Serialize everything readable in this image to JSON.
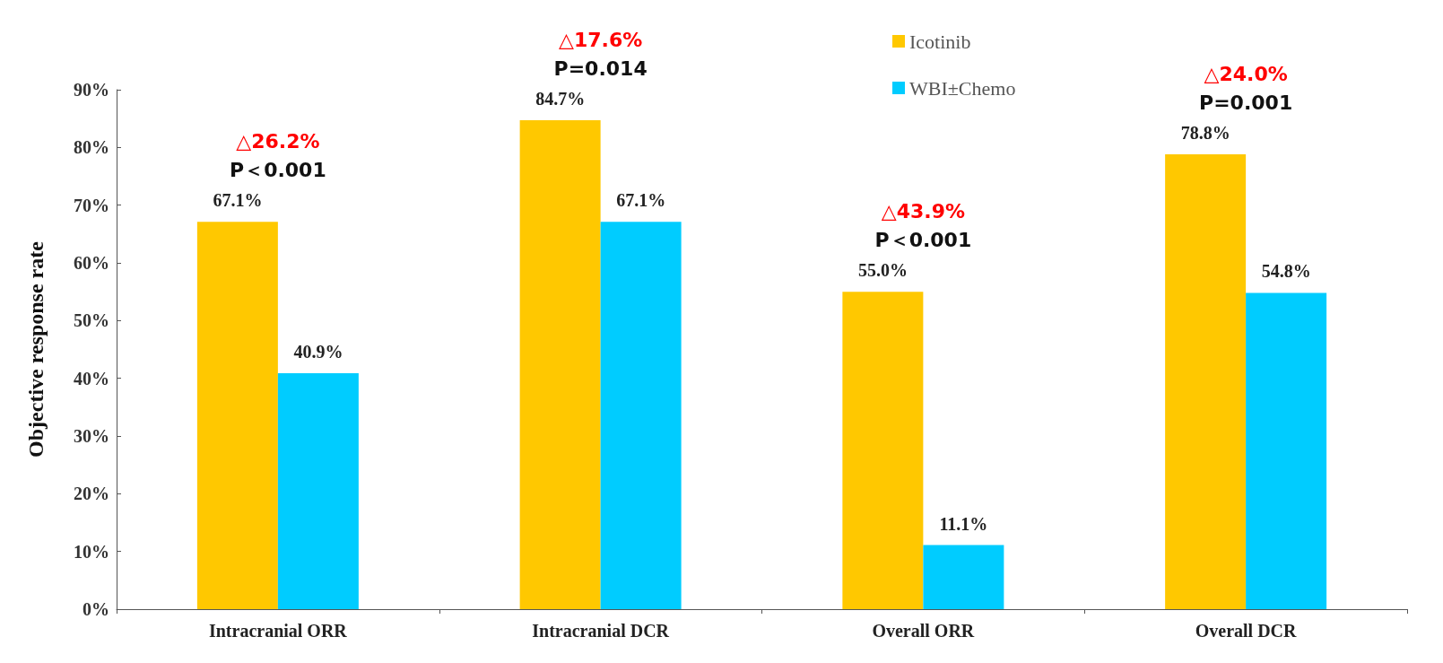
{
  "chart_data": {
    "type": "bar",
    "ylabel": "Objective response rate",
    "categories": [
      "Intracranial ORR",
      "Intracranial DCR",
      "Overall ORR",
      "Overall DCR"
    ],
    "series": [
      {
        "name": "Icotinib",
        "color": "#ffc800",
        "values": [
          67.1,
          84.7,
          55.0,
          78.8
        ],
        "value_labels": [
          "67.1%",
          "84.7%",
          "55.0%",
          "78.8%"
        ]
      },
      {
        "name": "WBI±Chemo",
        "color": "#00ccff",
        "values": [
          40.9,
          67.1,
          11.1,
          54.8
        ],
        "value_labels": [
          "40.9%",
          "67.1%",
          "11.1%",
          "54.8%"
        ]
      }
    ],
    "ylim": [
      0,
      90
    ],
    "yticks": [
      {
        "value": 0,
        "label": "0%"
      },
      {
        "value": 10,
        "label": "10%"
      },
      {
        "value": 20,
        "label": "20%"
      },
      {
        "value": 30,
        "label": "30%"
      },
      {
        "value": 40,
        "label": "40%"
      },
      {
        "value": 50,
        "label": "50%"
      },
      {
        "value": 60,
        "label": "60%"
      },
      {
        "value": 70,
        "label": "70%"
      },
      {
        "value": 80,
        "label": "80%"
      },
      {
        "value": 90,
        "label": "90%"
      }
    ],
    "grid": false,
    "legend": "top right",
    "annotations": [
      "△26.2%",
      "P＜0.001",
      "△17.6%",
      "P=0.014",
      "△43.9%",
      "P＜0.001",
      "△24.0%",
      "P=0.001"
    ]
  }
}
